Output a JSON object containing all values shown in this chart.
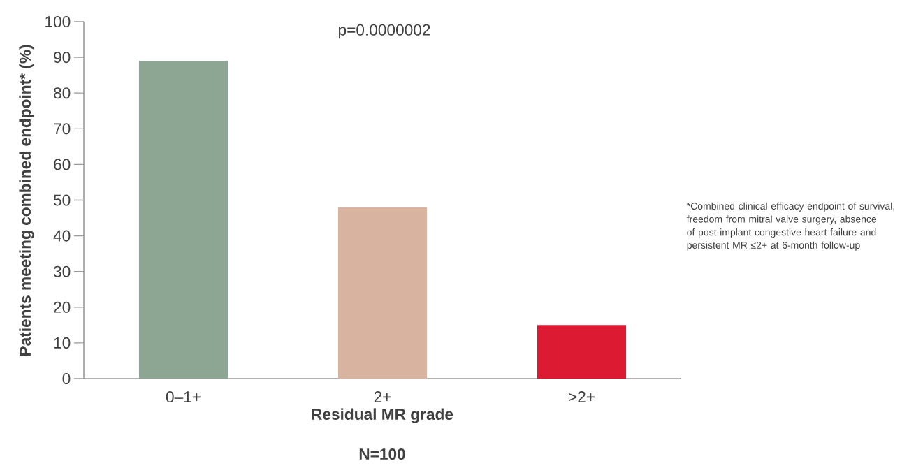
{
  "chart_data": {
    "type": "bar",
    "categories": [
      "0–1+",
      "2+",
      ">2+"
    ],
    "values": [
      89,
      48,
      15
    ],
    "colors": [
      "#8da593",
      "#d8b4a0",
      "#dc1a32"
    ],
    "xlabel": "Residual MR grade",
    "ylabel": "Patients meeting combined endpoint* (%)",
    "ylim": [
      0,
      100
    ],
    "yticks": [
      0,
      10,
      20,
      30,
      40,
      50,
      60,
      70,
      80,
      90,
      100
    ],
    "annotations": [
      "p=0.0000002",
      "*Combined clinical efficacy endpoint of survival, freedom from mitral valve surgery, absence of post-implant congestive heart failure and persistent MR ≤2+ at 6-month follow-up",
      "N=100"
    ]
  }
}
